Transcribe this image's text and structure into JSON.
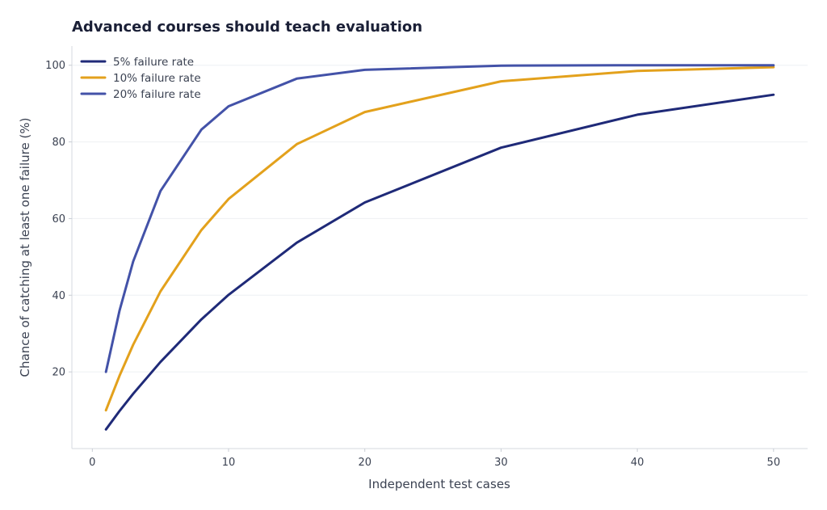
{
  "chart_data": {
    "type": "line",
    "title": "Advanced courses should teach evaluation",
    "xlabel": "Independent test cases",
    "ylabel": "Chance of catching at least one failure (%)",
    "xlim": [
      -1.5,
      52.5
    ],
    "ylim": [
      0,
      105
    ],
    "xticks": [
      0,
      10,
      20,
      30,
      40,
      50
    ],
    "yticks": [
      20,
      40,
      60,
      80,
      100
    ],
    "grid": "horizontal",
    "legend_position": "top-left",
    "x": [
      1,
      2,
      3,
      5,
      8,
      10,
      15,
      20,
      30,
      40,
      50
    ],
    "series": [
      {
        "name": "5% failure rate",
        "color": "#1f2a78",
        "values": [
          5,
          9.8,
          14.3,
          22.6,
          33.7,
          40.1,
          53.7,
          64.2,
          78.5,
          87.1,
          92.3
        ]
      },
      {
        "name": "10% failure rate",
        "color": "#e3a11c",
        "values": [
          10,
          19,
          27.1,
          41,
          57,
          65.1,
          79.4,
          87.8,
          95.8,
          98.5,
          99.5
        ]
      },
      {
        "name": "20% failure rate",
        "color": "#4352a8",
        "values": [
          20,
          36,
          48.8,
          67.2,
          83.2,
          89.3,
          96.5,
          98.8,
          99.9,
          100,
          100
        ]
      }
    ]
  }
}
